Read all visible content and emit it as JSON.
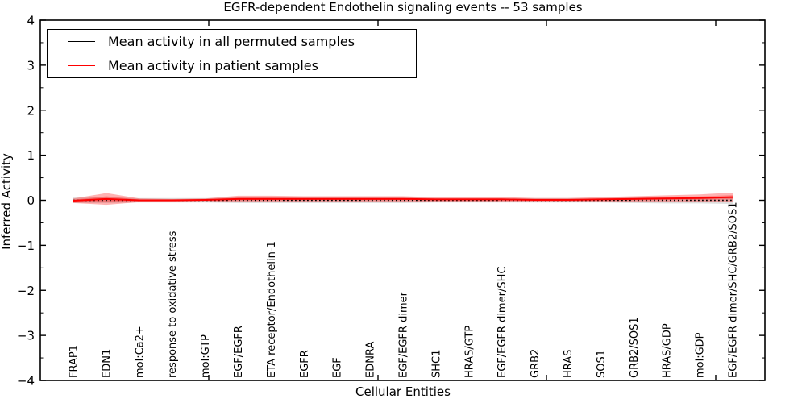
{
  "figure": {
    "title": "EGFR-dependent Endothelin signaling events -- 53 samples",
    "xlabel": "Cellular Entities",
    "ylabel": "Inferred Activity"
  },
  "legend": {
    "items": [
      {
        "label": "Mean activity in all permuted samples",
        "color": "#000000"
      },
      {
        "label": "Mean activity in patient samples",
        "color": "#ff0000"
      }
    ]
  },
  "chart_data": {
    "type": "line",
    "title": "EGFR-dependent Endothelin signaling events -- 53 samples",
    "xlabel": "Cellular Entities",
    "ylabel": "Inferred Activity",
    "ylim": [
      -4,
      4
    ],
    "yticks": [
      4,
      3,
      2,
      1,
      0,
      -1,
      -2,
      -3,
      -4
    ],
    "ytick_labels": [
      "4",
      "3",
      "2",
      "1",
      "0",
      "−1",
      "−2",
      "−3",
      "−4"
    ],
    "minor_tick_step": 0.5,
    "grid": false,
    "legend_position": "upper left",
    "categories": [
      "FRAP1",
      "EDN1",
      "mol:Ca2+",
      "response to oxidative stress",
      "mol:GTP",
      "EGF/EGFR",
      "ETA receptor/Endothelin-1",
      "EGFR",
      "EGF",
      "EDNRA",
      "EGF/EGFR dimer",
      "SHC1",
      "HRAS/GTP",
      "EGF/EGFR dimer/SHC",
      "GRB2",
      "HRAS",
      "SOS1",
      "GRB2/SOS1",
      "HRAS/GDP",
      "mol:GDP",
      "EGF/EGFR dimer/SHC/GRB2/SOS1"
    ],
    "series": [
      {
        "name": "Mean activity in all permuted samples",
        "color": "#000000",
        "line_style": "dotted",
        "values": [
          0,
          0,
          0,
          0,
          0,
          0,
          0,
          0,
          0,
          0,
          0,
          0,
          0,
          0,
          0,
          0,
          0,
          0,
          0,
          0,
          0
        ],
        "band_halfwidth": [
          0.06,
          0.06,
          0.05,
          0.05,
          0.05,
          0.06,
          0.06,
          0.06,
          0.06,
          0.06,
          0.06,
          0.05,
          0.05,
          0.05,
          0.05,
          0.05,
          0.05,
          0.06,
          0.07,
          0.07,
          0.08
        ],
        "band_color": "#000000",
        "band_opacity": 0.13
      },
      {
        "name": "Mean activity in patient samples",
        "color": "#ff0000",
        "line_style": "solid",
        "values": [
          -0.01,
          0.03,
          0.0,
          0.0,
          0.01,
          0.03,
          0.03,
          0.03,
          0.03,
          0.03,
          0.03,
          0.02,
          0.02,
          0.02,
          0.01,
          0.01,
          0.02,
          0.03,
          0.04,
          0.05,
          0.07
        ],
        "band_halfwidth": [
          0.05,
          0.13,
          0.04,
          0.03,
          0.03,
          0.07,
          0.07,
          0.06,
          0.06,
          0.06,
          0.06,
          0.05,
          0.05,
          0.05,
          0.04,
          0.04,
          0.05,
          0.06,
          0.07,
          0.08,
          0.1
        ],
        "band_color": "#ff0000",
        "band_opacity": 0.3
      }
    ]
  }
}
